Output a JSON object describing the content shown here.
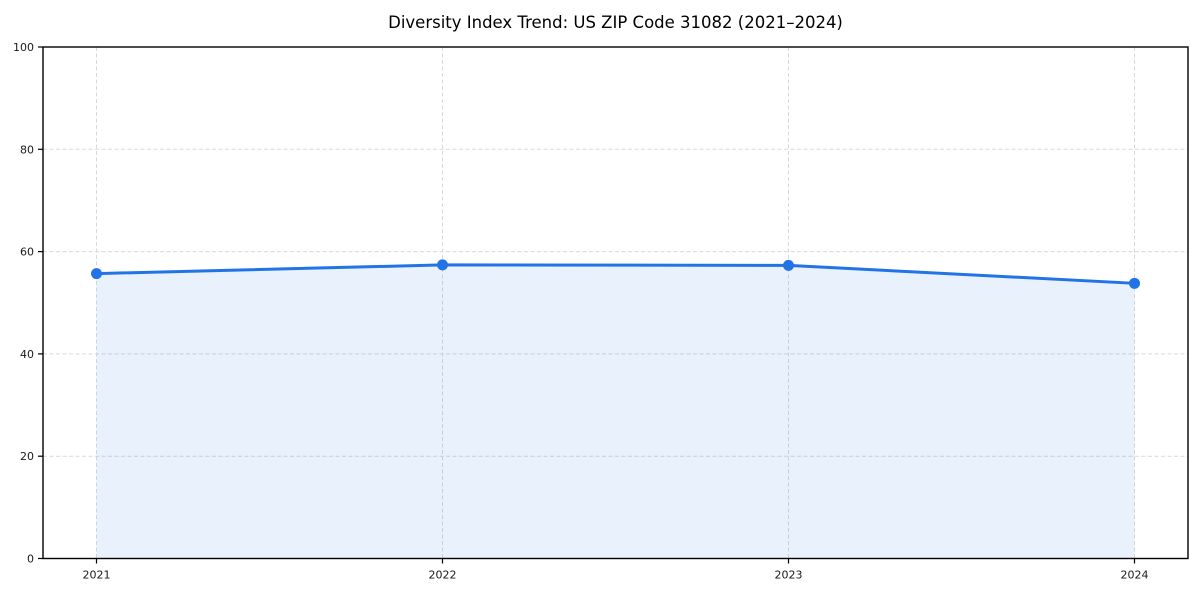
{
  "chart_data": {
    "type": "area",
    "title": "Diversity Index Trend: US ZIP Code 31082 (2021–2024)",
    "xlabel": "",
    "ylabel": "",
    "categories": [
      "2021",
      "2022",
      "2023",
      "2024"
    ],
    "values": [
      55.7,
      57.4,
      57.3,
      53.8
    ],
    "ylim": [
      0,
      100
    ],
    "yticks": [
      0,
      20,
      40,
      60,
      80,
      100
    ],
    "grid": "dashed-both-axes",
    "legend": "none",
    "colors": {
      "line": "#2273e6",
      "marker": "#2273e6",
      "fill": "rgba(34,115,230,0.10)",
      "gridline": "#d9d9d9",
      "spine": "#000000",
      "tick_label": "#1a1a1a",
      "title": "#000000",
      "background": "#ffffff"
    }
  }
}
